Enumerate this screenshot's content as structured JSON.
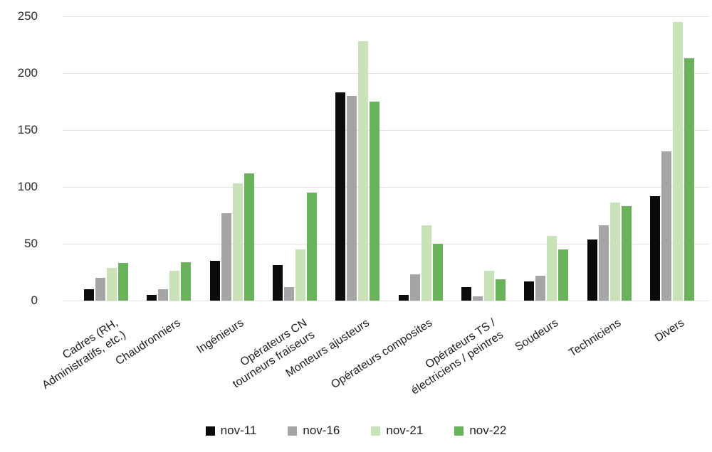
{
  "chart_data": {
    "type": "bar",
    "title": "",
    "xlabel": "",
    "ylabel": "",
    "categories": [
      "Cadres (RH,\nAdministratifs, etc.)",
      "Chaudronniers",
      "Ingénieurs",
      "Opérateurs CN\ntourneurs fraiseurs",
      "Monteurs ajusteurs",
      "Opérateurs composites",
      "Opérateurs TS /\nélectriciens / peintres",
      "Soudeurs",
      "Techniciens",
      "Divers"
    ],
    "series": [
      {
        "name": "nov-11",
        "color": "#0b0b0b",
        "values": [
          10,
          5,
          35,
          31,
          183,
          5,
          12,
          17,
          54,
          92
        ]
      },
      {
        "name": "nov-16",
        "color": "#a5a5a5",
        "values": [
          20,
          10,
          77,
          12,
          180,
          23,
          4,
          22,
          66,
          131
        ]
      },
      {
        "name": "nov-21",
        "color": "#c9e2b8",
        "values": [
          29,
          26,
          103,
          45,
          228,
          66,
          26,
          57,
          86,
          245
        ]
      },
      {
        "name": "nov-22",
        "color": "#6bb25c",
        "values": [
          33,
          34,
          112,
          95,
          175,
          50,
          19,
          45,
          83,
          213
        ]
      }
    ],
    "yticks": [
      0,
      50,
      100,
      150,
      200,
      250
    ],
    "ylim": [
      0,
      250
    ],
    "grid": true,
    "gridline_color": "#e2e2e2",
    "legend_position": "bottom"
  }
}
